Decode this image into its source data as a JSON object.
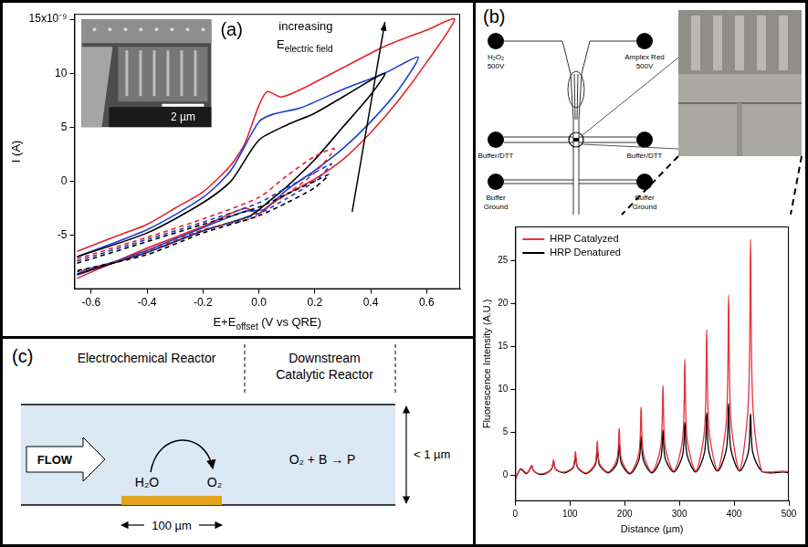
{
  "chart_data": [
    {
      "type": "line",
      "panel_label": "(a)",
      "x_label": [
        {
          "text": "E+E"
        },
        {
          "text": "offset",
          "sub": true
        },
        {
          "text": " (V vs QRE)"
        }
      ],
      "y_label": "I (A)",
      "xlim": [
        -0.66,
        0.72
      ],
      "ylim": [
        -10,
        15.5
      ],
      "xticks": [
        -0.6,
        -0.4,
        -0.2,
        {
          "value": 0,
          "label": "0.0"
        },
        0.2,
        0.4,
        0.6
      ],
      "yticks": [
        -5,
        0,
        5,
        10,
        {
          "value": 15,
          "label": "15x10⁻⁹"
        }
      ],
      "grid": false,
      "annotations": [
        {
          "text": "increasing"
        },
        {
          "parts": [
            {
              "text": "E"
            },
            {
              "text": "electric field",
              "sub": true
            }
          ]
        }
      ],
      "inset_scale_bar": "2 µm",
      "series": [
        {
          "color": "#000000",
          "line_style": "dashed",
          "x": [
            -0.65,
            -0.4,
            -0.2,
            0,
            0.1,
            0.2,
            0.25,
            0.2,
            0.1,
            0.0,
            -0.2,
            -0.4,
            -0.65
          ],
          "values": [
            -7.6,
            -5.6,
            -4,
            -2.4,
            -1.2,
            0,
            0.6,
            -0.6,
            -2,
            -3.2,
            -4.8,
            -6.8,
            -8.3
          ]
        },
        {
          "color": "#1c3fd1",
          "line_style": "dashed",
          "x": [
            -0.65,
            -0.4,
            -0.2,
            0,
            0.1,
            0.2,
            0.26,
            0.2,
            0.1,
            0.0,
            -0.2,
            -0.4,
            -0.65
          ],
          "values": [
            -7.4,
            -5.4,
            -3.8,
            -2,
            -0.6,
            0.8,
            1.6,
            0,
            -1.6,
            -3,
            -4.6,
            -6.6,
            -8.4
          ]
        },
        {
          "color": "#e4232b",
          "line_style": "dashed",
          "x": [
            -0.65,
            -0.4,
            -0.2,
            0,
            0.1,
            0.2,
            0.27,
            0.2,
            0.1,
            0.03,
            -0.02,
            -0.2,
            -0.4,
            -0.65
          ],
          "values": [
            -7.2,
            -5.2,
            -3.5,
            -1.5,
            0.5,
            2.3,
            3,
            0.8,
            -1.2,
            -2.4,
            -3.4,
            -4.5,
            -6.5,
            -8.5
          ]
        },
        {
          "color": "#000000",
          "line_style": "solid",
          "x": [
            -0.65,
            -0.4,
            -0.2,
            -0.1,
            0,
            0.1,
            0.2,
            0.3,
            0.45,
            0.4,
            0.3,
            0.2,
            0.1,
            0.03,
            -0.03,
            -0.2,
            -0.4,
            -0.65
          ],
          "values": [
            -7,
            -4.8,
            -2,
            0,
            3.8,
            5.2,
            6.3,
            7.8,
            10,
            8,
            5,
            2,
            -0.5,
            -2,
            -3.2,
            -4.6,
            -6.6,
            -8.6
          ]
        },
        {
          "color": "#1c3fd1",
          "line_style": "solid",
          "x": [
            -0.65,
            -0.4,
            -0.2,
            -0.1,
            0,
            0.05,
            0.15,
            0.3,
            0.45,
            0.57,
            0.5,
            0.4,
            0.3,
            0.2,
            0.1,
            0.02,
            -0.05,
            -0.2,
            -0.4,
            -0.65
          ],
          "values": [
            -7,
            -4.5,
            -1.5,
            1,
            5.5,
            6.2,
            6.8,
            8.5,
            10,
            11.5,
            8.5,
            5.5,
            3,
            1,
            -0.8,
            -2.6,
            -2.8,
            -4.3,
            -6.4,
            -8.7
          ]
        },
        {
          "color": "#e4232b",
          "line_style": "solid",
          "x": [
            -0.65,
            -0.5,
            -0.4,
            -0.3,
            -0.2,
            -0.1,
            -0.05,
            0,
            0.03,
            0.08,
            0.15,
            0.3,
            0.45,
            0.6,
            0.7,
            0.6,
            0.5,
            0.4,
            0.3,
            0.2,
            0.1,
            0.05,
            0,
            -0.05,
            -0.2,
            -0.4,
            -0.65
          ],
          "values": [
            -6.5,
            -5,
            -4,
            -2.5,
            -1,
            1.5,
            3.5,
            7,
            8.3,
            7.8,
            8.5,
            10.5,
            12.5,
            14,
            15,
            11,
            7.5,
            4.5,
            2,
            0.2,
            -1.2,
            -2,
            -3,
            -2.5,
            -4.2,
            -6.2,
            -9
          ]
        }
      ]
    },
    {
      "type": "line",
      "x_label": "Distance (µm)",
      "y_label": "Fluorescence Intensity (A.U.)",
      "xlim": [
        0,
        500
      ],
      "ylim": [
        -3,
        29
      ],
      "xticks": [
        0,
        100,
        200,
        300,
        400,
        500
      ],
      "yticks": [
        0,
        5,
        10,
        15,
        20,
        25
      ],
      "grid": false,
      "legend": "upper left",
      "x": [
        0,
        10,
        20,
        26,
        30,
        34,
        50,
        66,
        70,
        74,
        90,
        106,
        110,
        114,
        130,
        146,
        150,
        154,
        170,
        186,
        190,
        194,
        210,
        226,
        230,
        234,
        250,
        266,
        270,
        274,
        290,
        306,
        310,
        314,
        330,
        346,
        350,
        354,
        370,
        386,
        390,
        394,
        410,
        426,
        430,
        434,
        450,
        470,
        490,
        500
      ],
      "series": [
        {
          "name": "HRP Catalyzed",
          "color": "#e8313a",
          "values": [
            -0.5,
            0.8,
            0.3,
            0.6,
            1.2,
            0.5,
            0.2,
            0.7,
            1.8,
            0.7,
            0.4,
            1.0,
            2.8,
            1.0,
            0.3,
            1.4,
            4,
            1.4,
            0.4,
            1.9,
            5.5,
            1.9,
            0.3,
            2.6,
            8,
            2.6,
            0.4,
            3.4,
            10.5,
            3.4,
            0.5,
            4.3,
            13.5,
            4.3,
            0.5,
            5.4,
            17,
            5.4,
            0.6,
            6.6,
            21,
            6.6,
            0.6,
            8.5,
            27.5,
            8.5,
            0.6,
            0.4,
            0.5,
            0.4
          ]
        },
        {
          "name": "HRP Denatured",
          "color": "#000000",
          "values": [
            -0.4,
            0.7,
            0.2,
            0.6,
            1.1,
            0.5,
            0.1,
            0.7,
            1.6,
            0.7,
            0.3,
            0.9,
            2.2,
            0.9,
            0.2,
            1.2,
            3,
            1.2,
            0.3,
            1.4,
            3.6,
            1.4,
            0.2,
            1.8,
            4.6,
            1.8,
            0.3,
            2,
            5.3,
            2,
            0.4,
            2.4,
            6.2,
            2.4,
            0.4,
            2.7,
            7.3,
            2.7,
            0.5,
            3.1,
            8.4,
            3.1,
            0.5,
            2.7,
            7.2,
            2.7,
            0.5,
            0.3,
            0.4,
            0.3
          ]
        }
      ]
    }
  ],
  "diagram_b": {
    "panel_label": "(b)",
    "reservoirs": [
      {
        "lines": [
          "H₂O₂",
          "500V"
        ]
      },
      {
        "lines": [
          "Amplex Red",
          "500V"
        ]
      },
      {
        "lines": [
          "Buffer/DTT"
        ]
      },
      {
        "lines": [
          "Buffer/DTT"
        ]
      },
      {
        "lines": [
          "Buffer",
          "Ground"
        ]
      },
      {
        "lines": [
          "Buffer",
          "Ground"
        ]
      }
    ]
  },
  "diagram_c": {
    "panel_label": "(c)",
    "sections": [
      "Electrochemical Reactor",
      "Downstream Catalytic Reactor"
    ],
    "flow": "FLOW",
    "reactant": "H₂O",
    "product": "O₂",
    "reaction": "O₂ + B → P",
    "height": "< 1 µm",
    "electrode_length": "100 µm"
  }
}
